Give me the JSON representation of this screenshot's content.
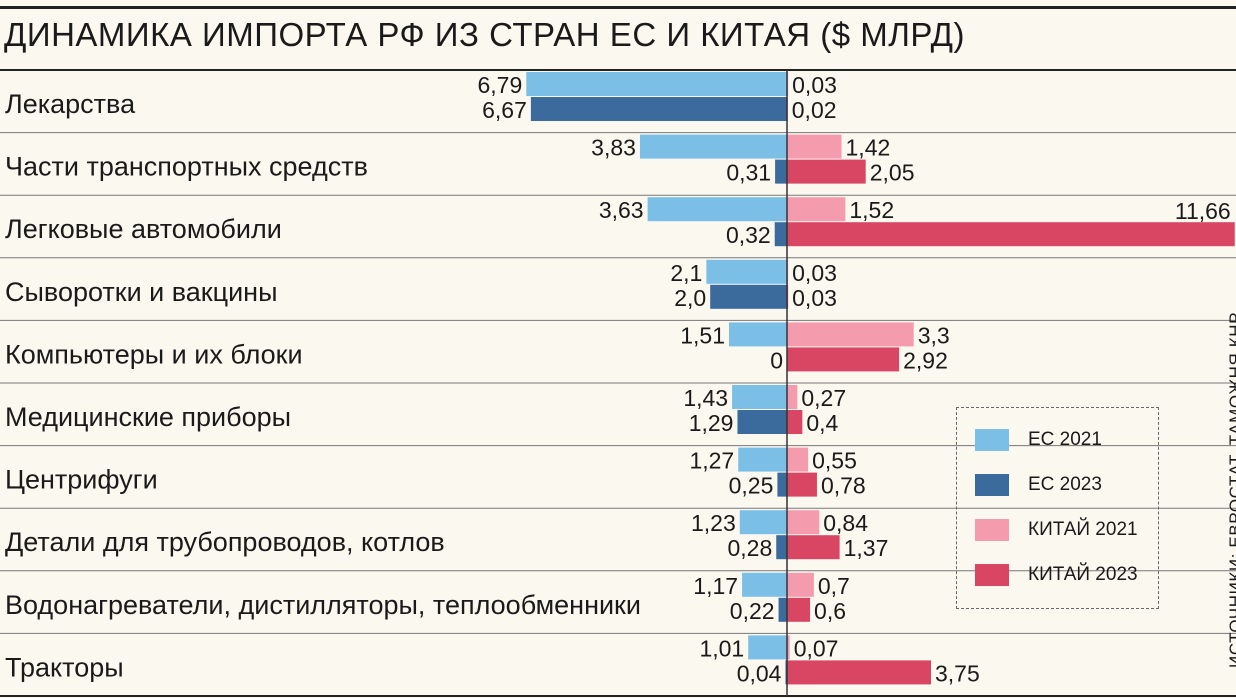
{
  "title": "ДИНАМИКА ИМПОРТА РФ ИЗ СТРАН ЕС И КИТАЯ ($ МЛРД)",
  "source": "ИСТОЧНИКИ: ЕВРОСТАТ, ТАМОЖНЯ КНР.",
  "legend": {
    "items": [
      {
        "label": "ЕС 2021",
        "color": "#7cbfe6"
      },
      {
        "label": "ЕС 2023",
        "color": "#3b6a9c"
      },
      {
        "label": "КИТАЙ 2021",
        "color": "#f49cae"
      },
      {
        "label": "КИТАЙ 2023",
        "color": "#d94664"
      }
    ]
  },
  "chart_data": {
    "type": "bar",
    "orientation": "horizontal-diverging",
    "title": "ДИНАМИКА ИМПОРТА РФ ИЗ СТРАН ЕС И КИТАЯ ($ МЛРД)",
    "categories": [
      "Лекарства",
      "Части транспортных средств",
      "Легковые автомобили",
      "Сыворотки и вакцины",
      "Компьютеры и их блоки",
      "Медицинские приборы",
      "Центрифуги",
      "Детали для трубопроводов, котлов",
      "Водонагреватели, дистилляторы, теплообменники",
      "Тракторы"
    ],
    "series": [
      {
        "name": "ЕС 2021",
        "color": "#7cbfe6",
        "side": "left",
        "values": [
          6.79,
          3.83,
          3.63,
          2.1,
          1.51,
          1.43,
          1.27,
          1.23,
          1.17,
          1.01
        ],
        "labels": [
          "6,79",
          "3,83",
          "3,63",
          "2,1",
          "1,51",
          "1,43",
          "1,27",
          "1,23",
          "1,17",
          "1,01"
        ]
      },
      {
        "name": "ЕС 2023",
        "color": "#3b6a9c",
        "side": "left",
        "values": [
          6.67,
          0.31,
          0.32,
          2.0,
          0,
          1.29,
          0.25,
          0.28,
          0.22,
          0.04
        ],
        "labels": [
          "6,67",
          "0,31",
          "0,32",
          "2,0",
          "0",
          "1,29",
          "0,25",
          "0,28",
          "0,22",
          "0,04"
        ]
      },
      {
        "name": "КИТАЙ 2021",
        "color": "#f49cae",
        "side": "right",
        "values": [
          0.03,
          1.42,
          1.52,
          0.03,
          3.3,
          0.27,
          0.55,
          0.84,
          0.7,
          0.07
        ],
        "labels": [
          "0,03",
          "1,42",
          "1,52",
          "0,03",
          "3,3",
          "0,27",
          "0,55",
          "0,84",
          "0,7",
          "0,07"
        ]
      },
      {
        "name": "КИТАЙ 2023",
        "color": "#d94664",
        "side": "right",
        "values": [
          0.02,
          2.05,
          11.66,
          0.03,
          2.92,
          0.4,
          0.78,
          1.37,
          0.6,
          3.75
        ],
        "labels": [
          "0,02",
          "2,05",
          "11,66",
          "0,03",
          "2,92",
          "0,4",
          "0,78",
          "1,37",
          "0,6",
          "3,75"
        ]
      }
    ],
    "unit": "$ млрд"
  }
}
